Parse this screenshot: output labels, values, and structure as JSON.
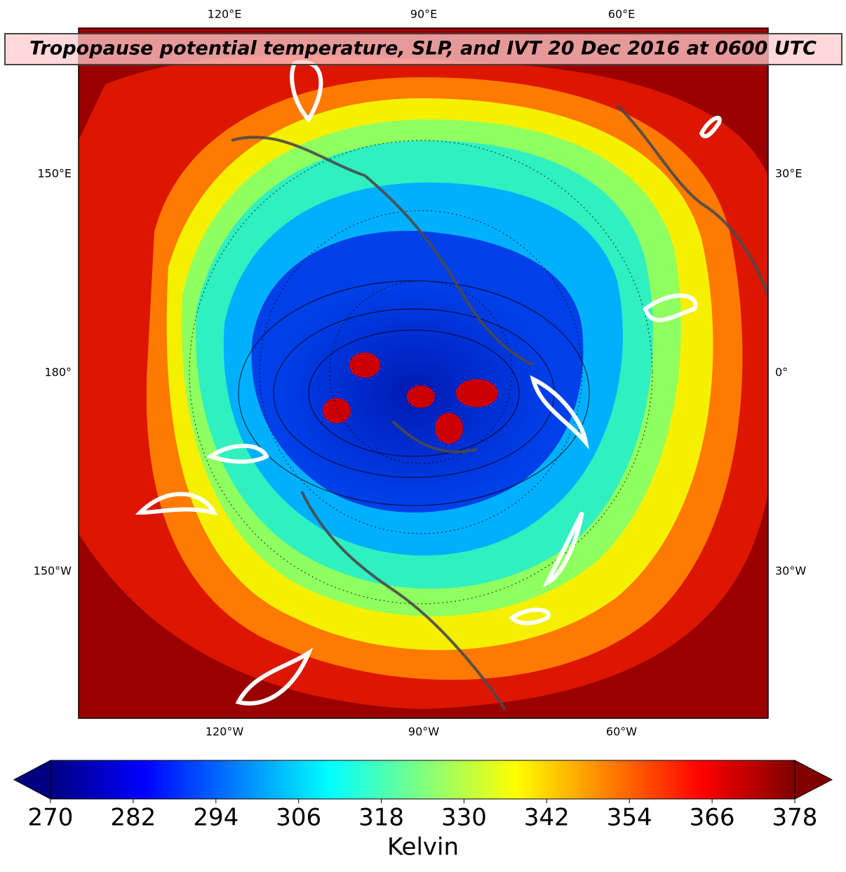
{
  "map": {
    "title": "Tropopause potential temperature, SLP, and IVT 20 Dec 2016 at 0600 UTC",
    "lon_labels": {
      "top": [
        "120°E",
        "90°E",
        "60°E"
      ],
      "bottom": [
        "120°W",
        "90°W",
        "60°W"
      ],
      "left": [
        "150°E",
        "180°",
        "150°W"
      ],
      "right": [
        "30°E",
        "0°",
        "30°W"
      ]
    }
  },
  "colorbar": {
    "label": "Kelvin",
    "colormap": "jet",
    "extend": "both",
    "range": [
      270,
      378
    ],
    "ticks": [
      270,
      282,
      294,
      306,
      318,
      330,
      342,
      354,
      366,
      378
    ]
  }
}
